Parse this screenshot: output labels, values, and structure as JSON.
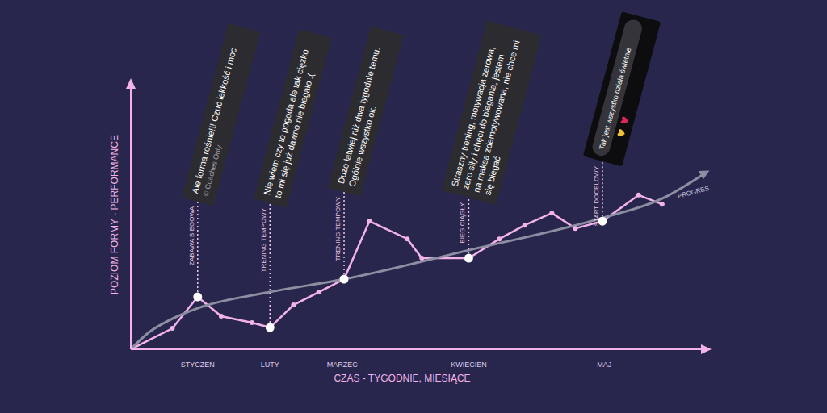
{
  "chart_data": {
    "type": "line",
    "x_label": "CZAS - TYGODNIE, MIESIĄCE",
    "y_label": "POZIOM FORMY - PERFORMANCE",
    "xlim": [
      0,
      32
    ],
    "ylim": [
      0,
      100
    ],
    "xticks": [
      {
        "value": 3.7,
        "label": "STYCZEŃ"
      },
      {
        "value": 7.7,
        "label": "LUTY"
      },
      {
        "value": 11.7,
        "label": "MARZEC"
      },
      {
        "value": 18.7,
        "label": "KWIECIEŃ"
      },
      {
        "value": 26.2,
        "label": "MAJ"
      }
    ],
    "tick_labels": "x",
    "grid": false,
    "series": [
      {
        "x": [
          0,
          2.3,
          3.7,
          5.0,
          6.7,
          7.7,
          9.0,
          10.4,
          11.8,
          13.2,
          15.3,
          16.1,
          18.7,
          20.4,
          21.8,
          23.3,
          24.6,
          26.1,
          28.1,
          29.4
        ],
        "values": [
          0,
          7.8,
          19.5,
          12.3,
          9.9,
          8.1,
          16.5,
          21.3,
          26.1,
          47.7,
          41.1,
          33.9,
          33.9,
          41.1,
          46.2,
          50.7,
          45,
          47.7,
          57.4,
          54
        ],
        "color": "#f3b3e8",
        "marker": "circle",
        "line_style": "solid"
      },
      {
        "name": "PROGRES",
        "x": [
          0,
          1,
          2.3,
          3.7,
          7.7,
          11.8,
          18.7,
          26.1,
          29.4,
          31.9
        ],
        "values": [
          0,
          6.3,
          11.4,
          15.3,
          21.3,
          26.1,
          36.9,
          48.9,
          56.1,
          66.1
        ],
        "color": "#8e8ea3",
        "marker": "arrow",
        "line_style": "smooth"
      }
    ],
    "annotations": [
      {
        "x": 3.7,
        "y": 19.5,
        "label": "ZABAWA BIEGOWA",
        "text": "Ale forma rośnie!!! Czuć lekkość i moc",
        "footer": "© Coaches Only"
      },
      {
        "x": 7.7,
        "y": 8.1,
        "label": "TRENING TEMPOWY",
        "text": "Nie wiem czy to pogoda ale tak ciężko to mi się już dawno nie biegało :("
      },
      {
        "x": 11.8,
        "y": 26.1,
        "label": "TRENING TEMPOWY",
        "text": "Duzo łatwiej niż dwa tygodnie temu. Ogólnie wszystko ok."
      },
      {
        "x": 18.7,
        "y": 33.9,
        "label": "BIEG CIĄGŁY",
        "text": "Straszny trening, motywacja zerowa, zero siły i chęci do biegania, jestem na maksa zdemotywowana, nie chce mi się biegać"
      },
      {
        "x": 26.1,
        "y": 47.7,
        "label": "START DOCELOWY",
        "text": "Tak jest wszystko działa świetnie"
      }
    ]
  }
}
